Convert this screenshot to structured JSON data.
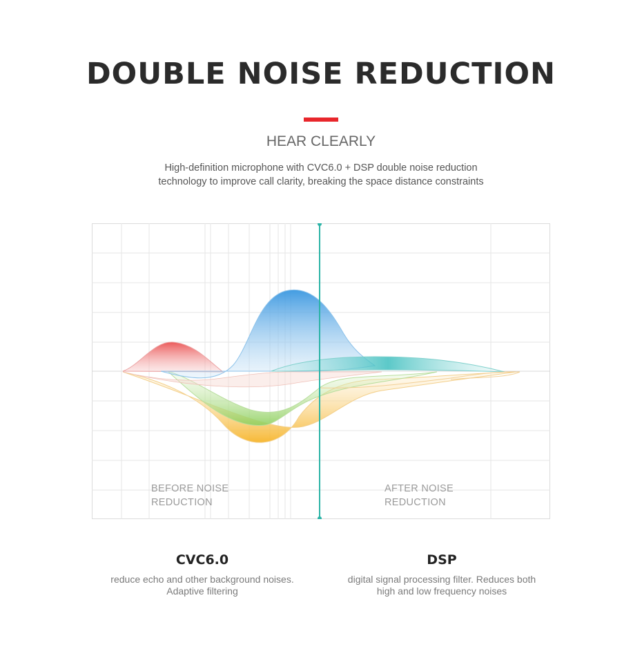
{
  "header": {
    "title": "DOUBLE NOISE REDUCTION",
    "subtitle": "HEAR CLEARLY",
    "description": "High-definition microphone with CVC6.0 + DSP double noise reduction technology to improve call clarity, breaking the space distance constraints",
    "accent_color": "#e8262b"
  },
  "graphic": {
    "before_label": "BEFORE NOISE REDUCTION",
    "after_label": "AFTER NOISE REDUCTION",
    "divider_color": "#2bb3a6"
  },
  "features": [
    {
      "title": "CVC6.0",
      "description": "reduce echo and other background noises. Adaptive filtering"
    },
    {
      "title": "DSP",
      "description": "digital signal processing filter. Reduces both high and low frequency noises"
    }
  ]
}
